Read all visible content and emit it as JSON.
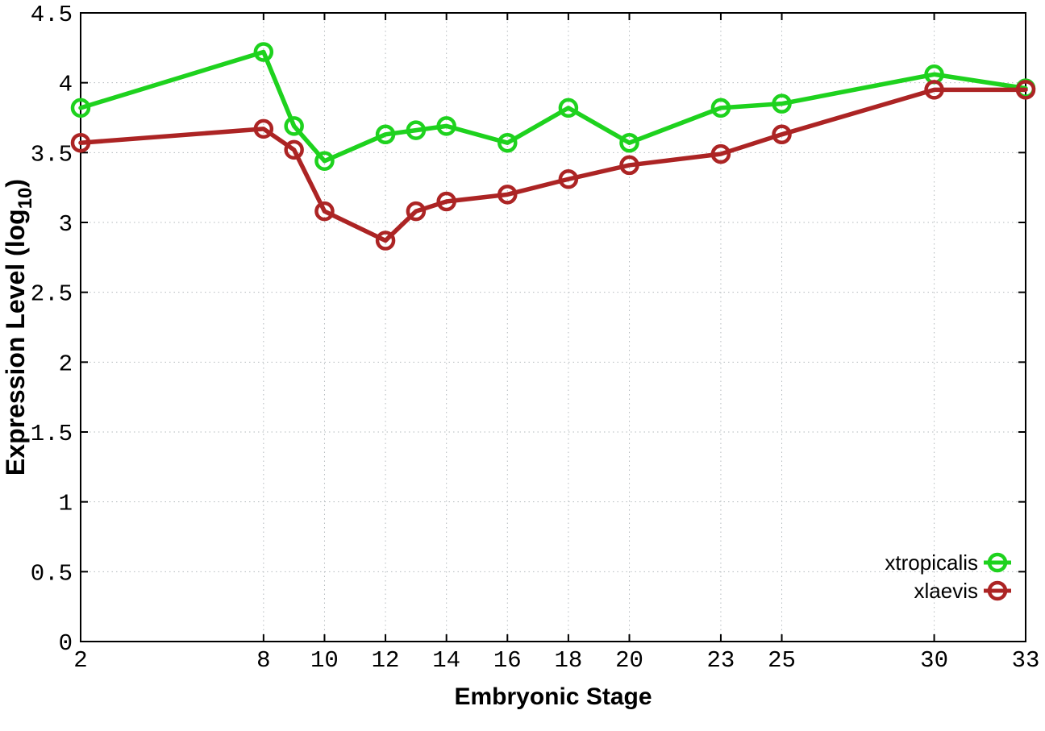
{
  "figure": {
    "background": "#ffffff",
    "border_color": "#000000",
    "grid_color": "#b3b9bd",
    "text_color": "#000000"
  },
  "chart_data": {
    "type": "line",
    "title": "",
    "xlabel": "Embryonic Stage",
    "ylabel_prefix": "Expression Level (log",
    "ylabel_sub": "10",
    "ylabel_suffix": ")",
    "xlim": [
      2,
      33
    ],
    "ylim": [
      0,
      4.5
    ],
    "grid": true,
    "legend_position": "bottom-right",
    "x": [
      2,
      8,
      9,
      10,
      12,
      13,
      14,
      16,
      18,
      20,
      23,
      25,
      30,
      33
    ],
    "xticks": {
      "values": [
        2,
        8,
        10,
        12,
        14,
        16,
        18,
        20,
        23,
        25,
        30,
        33
      ],
      "labels": [
        "2",
        "8",
        "10",
        "12",
        "14",
        "16",
        "18",
        "20",
        "23",
        "25",
        "30",
        "33"
      ]
    },
    "yticks": {
      "values": [
        0,
        0.5,
        1,
        1.5,
        2,
        2.5,
        3,
        3.5,
        4,
        4.5
      ],
      "labels": [
        "0",
        "0.5",
        "1",
        "1.5",
        "2",
        "2.5",
        "3",
        "3.5",
        "4",
        "4.5"
      ]
    },
    "series": [
      {
        "name": "xtropicalis",
        "color": "#1ed21e",
        "marker": "open-circle",
        "values": [
          3.82,
          4.22,
          3.69,
          3.44,
          3.63,
          3.66,
          3.69,
          3.57,
          3.82,
          3.57,
          3.82,
          3.85,
          4.06,
          3.96
        ]
      },
      {
        "name": "xlaevis",
        "color": "#ac2424",
        "marker": "open-circle",
        "values": [
          3.57,
          3.67,
          3.52,
          3.08,
          2.87,
          3.08,
          3.15,
          3.2,
          3.31,
          3.41,
          3.49,
          3.63,
          3.95,
          3.95
        ]
      }
    ]
  }
}
